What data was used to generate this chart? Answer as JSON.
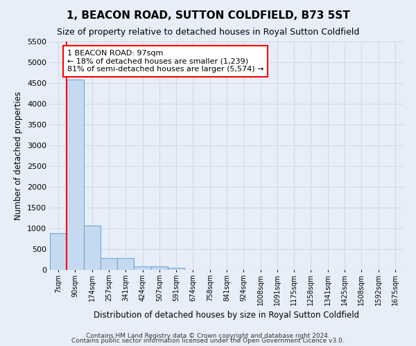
{
  "title": "1, BEACON ROAD, SUTTON COLDFIELD, B73 5ST",
  "subtitle": "Size of property relative to detached houses in Royal Sutton Coldfield",
  "xlabel": "Distribution of detached houses by size in Royal Sutton Coldfield",
  "ylabel": "Number of detached properties",
  "footnote1": "Contains HM Land Registry data © Crown copyright and database right 2024.",
  "footnote2": "Contains public sector information licensed under the Open Government Licence v3.0.",
  "bar_categories": [
    "7sqm",
    "90sqm",
    "174sqm",
    "257sqm",
    "341sqm",
    "424sqm",
    "507sqm",
    "591sqm",
    "674sqm",
    "758sqm",
    "841sqm",
    "924sqm",
    "1008sqm",
    "1091sqm",
    "1175sqm",
    "1258sqm",
    "1341sqm",
    "1425sqm",
    "1508sqm",
    "1592sqm",
    "1675sqm"
  ],
  "bar_values": [
    880,
    4580,
    1060,
    285,
    285,
    80,
    80,
    55,
    0,
    0,
    0,
    0,
    0,
    0,
    0,
    0,
    0,
    0,
    0,
    0,
    0
  ],
  "bar_color": "#c5d9f0",
  "bar_edge_color": "#6aaad4",
  "ylim": [
    0,
    5500
  ],
  "yticks": [
    0,
    500,
    1000,
    1500,
    2000,
    2500,
    3000,
    3500,
    4000,
    4500,
    5000,
    5500
  ],
  "annotation_text": "1 BEACON ROAD: 97sqm\n← 18% of detached houses are smaller (1,239)\n81% of semi-detached houses are larger (5,574) →",
  "annotation_box_color": "white",
  "annotation_box_edge_color": "red",
  "line_color": "red",
  "bg_color": "#e8eef8",
  "grid_color": "#d0daea",
  "title_fontsize": 11,
  "subtitle_fontsize": 9
}
